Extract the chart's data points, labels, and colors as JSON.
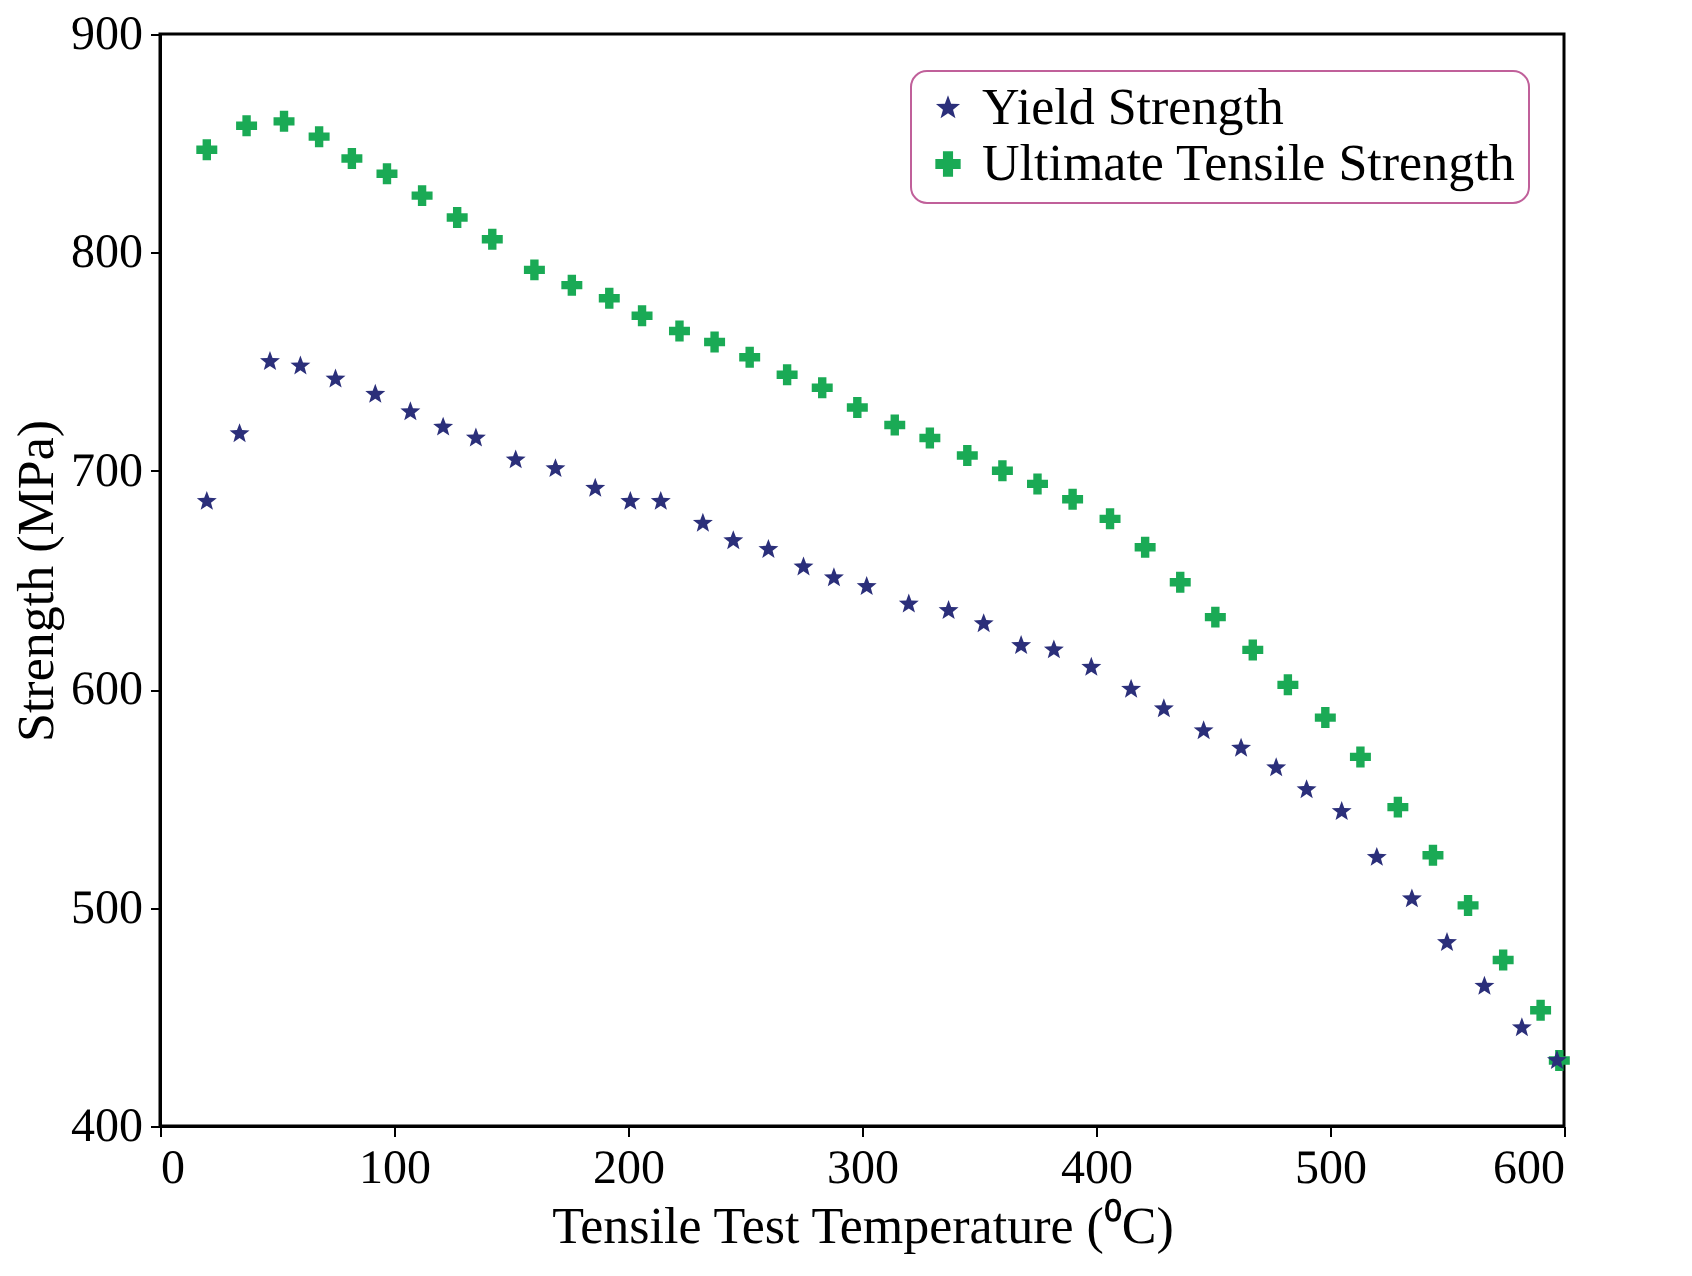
{
  "chart_data": {
    "type": "scatter",
    "xlabel": "Tensile Test Temperature (⁰C)",
    "ylabel": "Strength (MPa)",
    "xlim": [
      0,
      600
    ],
    "xticks": [
      0,
      100,
      200,
      300,
      400,
      500,
      600
    ],
    "ylim": [
      400,
      900
    ],
    "yticks": [
      400,
      500,
      600,
      700,
      800,
      900
    ],
    "grid": false,
    "legend": "top right",
    "series": [
      {
        "name": "Yield Strength",
        "color": "#2b2f7a",
        "marker": "star",
        "x": [
          20,
          34,
          47,
          60,
          75,
          92,
          107,
          121,
          135,
          152,
          169,
          186,
          201,
          214,
          232,
          245,
          260,
          275,
          288,
          302,
          320,
          337,
          352,
          368,
          382,
          398,
          415,
          429,
          446,
          462,
          477,
          490,
          505,
          520,
          535,
          550,
          566,
          582,
          597
        ],
        "values": [
          686,
          717,
          750,
          748,
          742,
          735,
          727,
          720,
          715,
          705,
          701,
          692,
          686,
          686,
          676,
          668,
          664,
          656,
          651,
          647,
          639,
          636,
          630,
          620,
          618,
          610,
          600,
          591,
          581,
          573,
          564,
          554,
          544,
          523,
          504,
          484,
          464,
          445,
          430
        ]
      },
      {
        "name": "Ultimate Tensile Strength",
        "color": "#1aaa55",
        "marker": "cross",
        "x": [
          20,
          37,
          53,
          68,
          82,
          97,
          112,
          127,
          142,
          160,
          176,
          192,
          206,
          222,
          237,
          252,
          268,
          283,
          298,
          314,
          329,
          345,
          360,
          375,
          390,
          406,
          421,
          436,
          451,
          467,
          482,
          498,
          513,
          529,
          544,
          559,
          574,
          590,
          598
        ],
        "values": [
          847,
          858,
          860,
          853,
          843,
          836,
          826,
          816,
          806,
          792,
          785,
          779,
          771,
          764,
          759,
          752,
          744,
          738,
          729,
          721,
          715,
          707,
          700,
          694,
          687,
          678,
          665,
          649,
          633,
          618,
          602,
          587,
          569,
          546,
          524,
          501,
          476,
          453,
          430
        ]
      }
    ]
  }
}
